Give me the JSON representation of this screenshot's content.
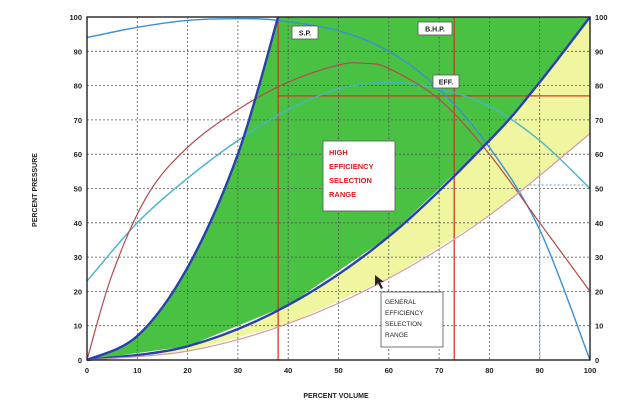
{
  "chart_data": {
    "type": "line",
    "title": "",
    "xlabel": "PERCENT VOLUME",
    "ylabel": "PERCENT PRESSURE",
    "xlim": [
      0,
      100
    ],
    "ylim": [
      0,
      100
    ],
    "x_ticks": [
      "0",
      "10",
      "20",
      "30",
      "40",
      "50",
      "60",
      "70",
      "80",
      "90",
      "100"
    ],
    "y_ticks": [
      "0",
      "10",
      "20",
      "30",
      "40",
      "50",
      "60",
      "70",
      "80",
      "90",
      "100"
    ],
    "grid": "dashed",
    "series": [
      {
        "name": "S.P.",
        "color": "#3b8fd9",
        "x": [
          0,
          10,
          20,
          30,
          38,
          50,
          60,
          70,
          80,
          90,
          100
        ],
        "y": [
          94,
          97,
          99,
          99.5,
          99,
          96,
          90,
          79,
          62,
          38,
          0
        ]
      },
      {
        "name": "B.H.P.",
        "color": "#46b5c5",
        "x": [
          0,
          10,
          20,
          30,
          40,
          50,
          60,
          70,
          80,
          90,
          100
        ],
        "y": [
          23,
          40,
          53,
          64,
          73,
          79,
          81,
          79,
          74,
          64,
          50
        ]
      },
      {
        "name": "EFF.",
        "color": "#b44a4a",
        "x": [
          0,
          5,
          12,
          20,
          30,
          40,
          50,
          55,
          60,
          70,
          80,
          90,
          100
        ],
        "y": [
          0,
          25,
          48,
          62,
          73,
          81,
          86,
          86.5,
          85,
          76,
          60,
          40,
          20
        ]
      },
      {
        "name": "",
        "color": "#2c3fb0",
        "x": [
          0,
          10,
          20,
          30,
          38
        ],
        "y": [
          0,
          7,
          27,
          60,
          100
        ]
      },
      {
        "name": "",
        "color": "#2c3fb0",
        "x": [
          0,
          20,
          40,
          60,
          80,
          90,
          100
        ],
        "y": [
          0,
          4,
          16,
          36,
          64,
          81,
          100
        ]
      },
      {
        "name": "",
        "color": "#d19ba8",
        "x": [
          0,
          20,
          40,
          60,
          80,
          100
        ],
        "y": [
          0,
          2.6,
          10.6,
          23.8,
          42.2,
          66
        ]
      }
    ],
    "reference_lines": [
      {
        "orientation": "vertical",
        "x": 38,
        "color": "#d9361f"
      },
      {
        "orientation": "vertical",
        "x": 73,
        "color": "#d9361f"
      },
      {
        "orientation": "horizontal",
        "y": 77,
        "color": "#d9361f"
      },
      {
        "orientation": "vertical",
        "x": 90,
        "color": "#8fb5e0"
      },
      {
        "orientation": "horizontal",
        "y": 51,
        "color": "#8fb5e0"
      }
    ],
    "regions": [
      {
        "label": "HIGH EFFICIENCY SELECTION RANGE",
        "color": "#3fbf3a"
      },
      {
        "label": "GENERAL EFFICIENCY SELECTION RANGE",
        "color": "#eef59a"
      }
    ],
    "annotations": {
      "sp_tag": "S.P.",
      "bhp_tag": "B.H.P.",
      "eff_tag": "EFF.",
      "high_range_lines": [
        "HIGH",
        "EFFICIENCY",
        "SELECTION",
        "RANGE"
      ],
      "general_range_lines": [
        "GENERAL",
        "EFFICIENCY",
        "SELECTION",
        "RANGE"
      ]
    }
  }
}
